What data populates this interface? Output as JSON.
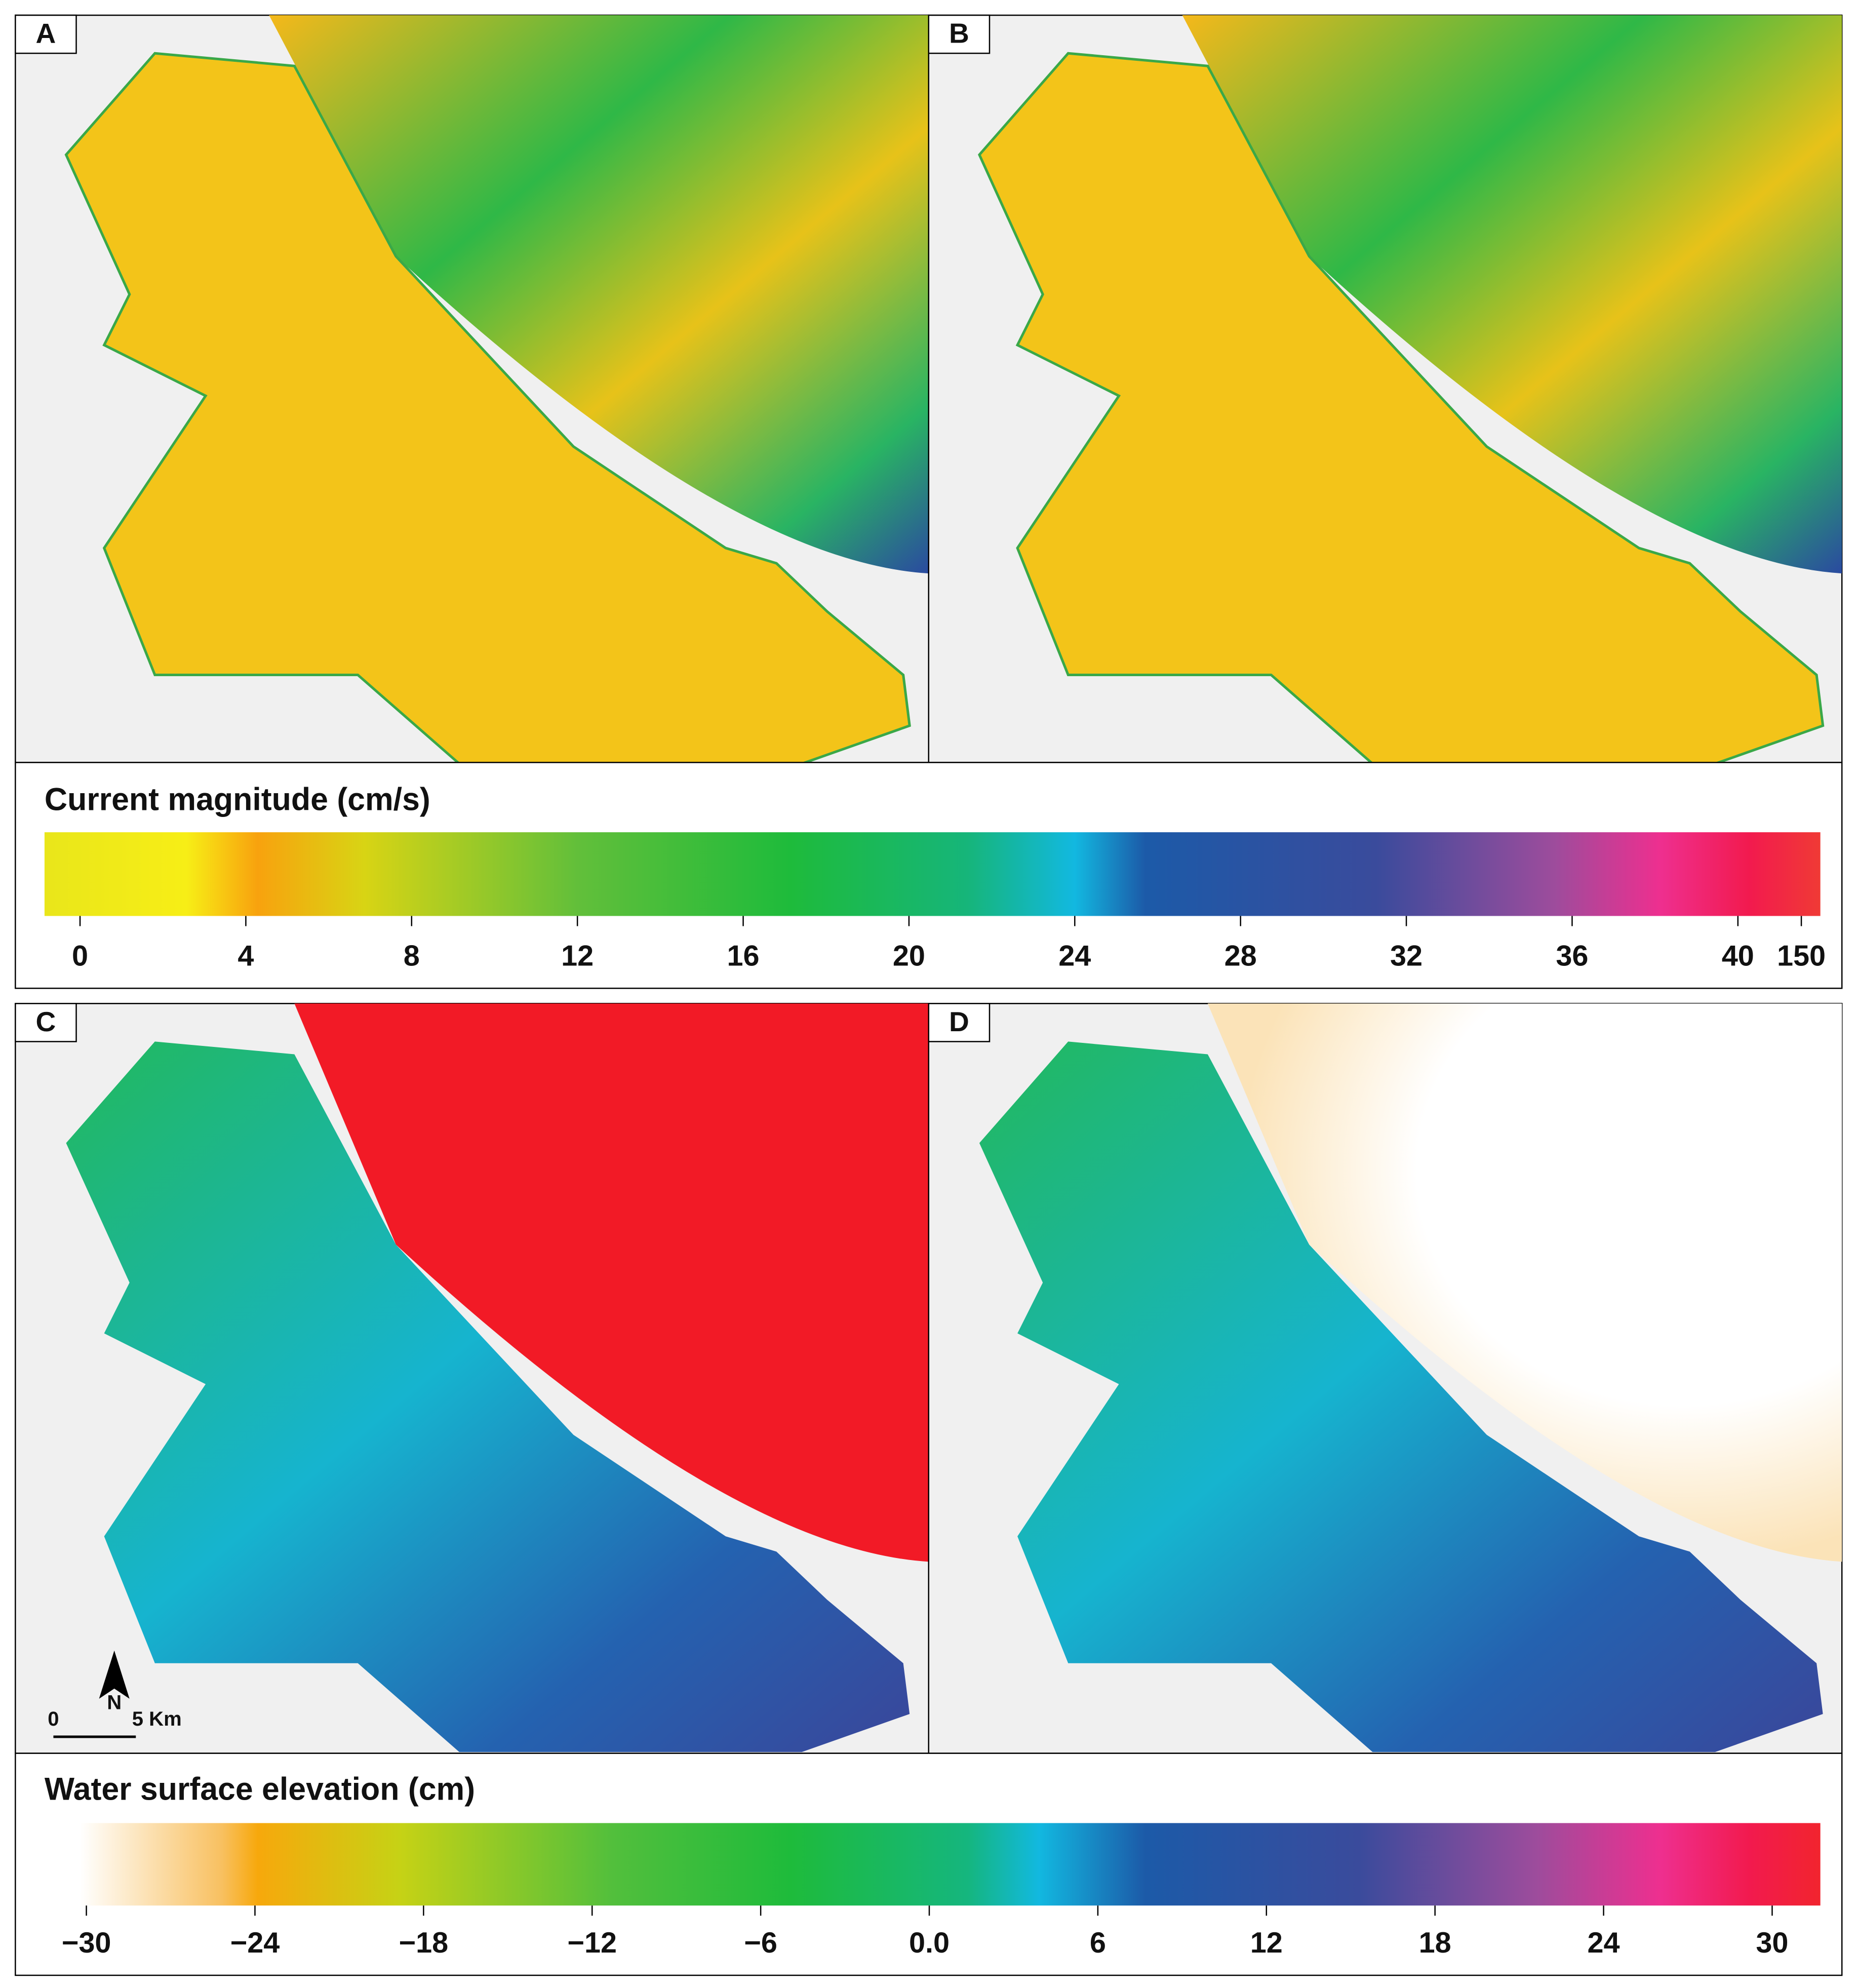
{
  "panels": [
    {
      "label": "A"
    },
    {
      "label": "B"
    },
    {
      "label": "C"
    },
    {
      "label": "D"
    }
  ],
  "colorbars": [
    {
      "title": "Current magnitude (cm/s)",
      "ticks": [
        0,
        4,
        8,
        12,
        16,
        20,
        24,
        28,
        32,
        36,
        40,
        150
      ]
    },
    {
      "title": "Water surface elevation (cm)",
      "ticks": [
        {
          "value": -30,
          "label": "−30"
        },
        {
          "value": -24,
          "label": "−24"
        },
        {
          "value": -18,
          "label": "−18"
        },
        {
          "value": -12,
          "label": "−12"
        },
        {
          "value": -6,
          "label": "−6"
        },
        {
          "value": 0,
          "label": "0.0"
        },
        6,
        12,
        18,
        24,
        30
      ]
    }
  ],
  "compass": "N",
  "scale_bar": {
    "labels": [
      "0",
      "5 Km"
    ]
  }
}
